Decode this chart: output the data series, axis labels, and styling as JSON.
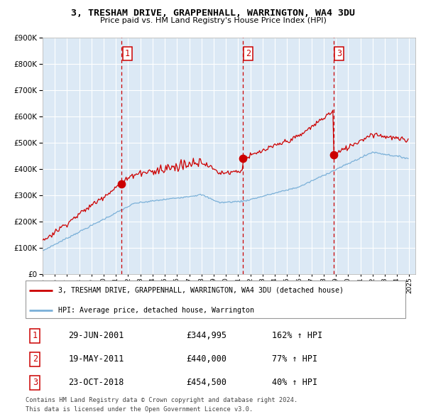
{
  "title": "3, TRESHAM DRIVE, GRAPPENHALL, WARRINGTON, WA4 3DU",
  "subtitle": "Price paid vs. HM Land Registry's House Price Index (HPI)",
  "red_label": "3, TRESHAM DRIVE, GRAPPENHALL, WARRINGTON, WA4 3DU (detached house)",
  "blue_label": "HPI: Average price, detached house, Warrington",
  "transactions": [
    {
      "num": 1,
      "date": "29-JUN-2001",
      "price": 344995,
      "pct": "162% ↑ HPI"
    },
    {
      "num": 2,
      "date": "19-MAY-2011",
      "price": 440000,
      "pct": "77% ↑ HPI"
    },
    {
      "num": 3,
      "date": "23-OCT-2018",
      "price": 454500,
      "pct": "40% ↑ HPI"
    }
  ],
  "footer": "Contains HM Land Registry data © Crown copyright and database right 2024.\nThis data is licensed under the Open Government Licence v3.0.",
  "bg_color": "#dce9f5",
  "grid_color": "#ffffff",
  "red_color": "#cc0000",
  "blue_color": "#7ab0d8",
  "ylim": [
    0,
    900000
  ],
  "yticks": [
    0,
    100000,
    200000,
    300000,
    400000,
    500000,
    600000,
    700000,
    800000,
    900000
  ],
  "xmin": 1995,
  "xmax": 2025.5
}
